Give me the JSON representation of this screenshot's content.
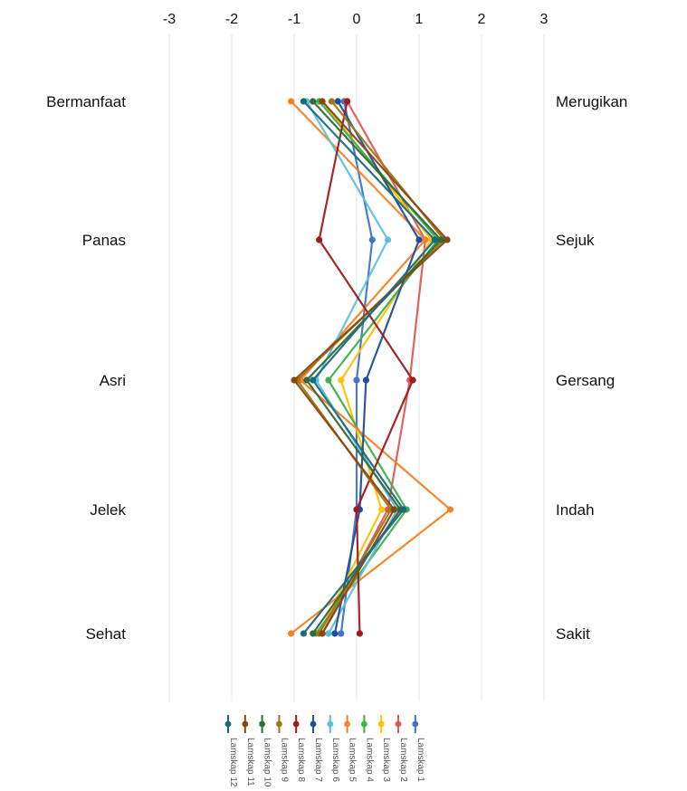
{
  "chart_data": {
    "type": "line",
    "title": "",
    "xlabel": "",
    "ylabel": "",
    "xlim": [
      -3,
      3
    ],
    "xticks": [
      "-3",
      "-2",
      "-1",
      "0",
      "1",
      "2",
      "3"
    ],
    "grid": true,
    "legend_position": "bottom",
    "left_labels": [
      "Bermanfaat",
      "Panas",
      "Asri",
      "Jelek",
      "Sehat"
    ],
    "right_labels": [
      "Merugikan",
      "Sejuk",
      "Gersang",
      "Indah",
      "Sakit"
    ],
    "series": [
      {
        "name": "Lamskap 1",
        "color": "#4472C4",
        "values": [
          -0.2,
          0.25,
          0.0,
          0.0,
          -0.25
        ]
      },
      {
        "name": "Lamskap 2",
        "color": "#E15759",
        "values": [
          -0.15,
          1.1,
          0.85,
          0.5,
          -0.55
        ]
      },
      {
        "name": "Lamskap 3",
        "color": "#FFC000",
        "values": [
          -0.55,
          1.2,
          -0.25,
          0.4,
          -0.6
        ]
      },
      {
        "name": "Lamskap 4",
        "color": "#3FAE49",
        "values": [
          -0.6,
          1.3,
          -0.45,
          0.8,
          -0.65
        ]
      },
      {
        "name": "Lamskap 5",
        "color": "#F58220",
        "values": [
          -1.05,
          1.1,
          -0.9,
          1.5,
          -1.05
        ]
      },
      {
        "name": "Lamskap 6",
        "color": "#5BC0DE",
        "values": [
          -0.8,
          0.5,
          -0.65,
          0.65,
          -0.45
        ]
      },
      {
        "name": "Lamskap 7",
        "color": "#1F4E9B",
        "values": [
          -0.3,
          1.0,
          0.15,
          0.05,
          -0.35
        ]
      },
      {
        "name": "Lamskap 8",
        "color": "#9E1B1B",
        "values": [
          -0.15,
          -0.6,
          0.9,
          0.0,
          0.05
        ]
      },
      {
        "name": "Lamskap 9",
        "color": "#A0760D",
        "values": [
          -0.4,
          1.4,
          -0.95,
          0.55,
          -0.6
        ]
      },
      {
        "name": "Lamskap 10",
        "color": "#2E6B3A",
        "values": [
          -0.7,
          1.35,
          -0.8,
          0.7,
          -0.7
        ]
      },
      {
        "name": "Lamskap 11",
        "color": "#8B4513",
        "values": [
          -0.55,
          1.45,
          -1.0,
          0.6,
          -0.55
        ]
      },
      {
        "name": "Lamskap 12",
        "color": "#1A6B7A",
        "values": [
          -0.85,
          1.25,
          -0.7,
          0.75,
          -0.85
        ]
      }
    ]
  }
}
